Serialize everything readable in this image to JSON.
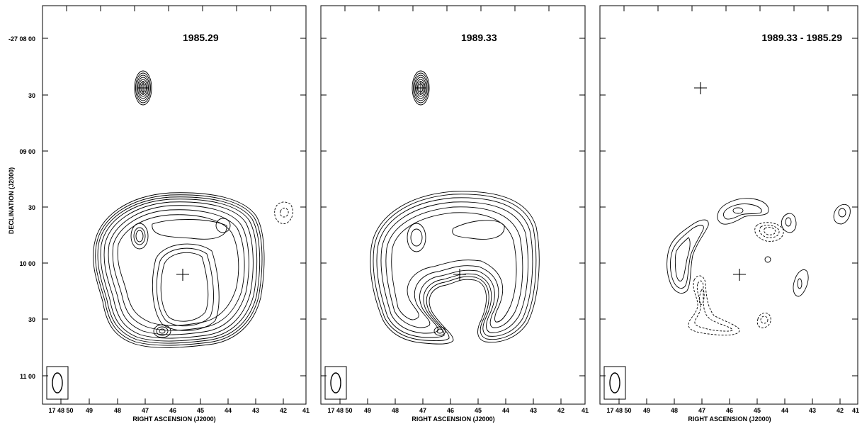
{
  "figure": {
    "y_axis_label": "DECLINATION (J2000)",
    "x_axis_label": "RIGHT ASCENSION (J2000)",
    "dec_ticks": [
      "-27 08 00",
      "30",
      "09 00",
      "30",
      "10 00",
      "30",
      "11 00"
    ],
    "ra_ticks": [
      "17 48 50",
      "49",
      "48",
      "47",
      "46",
      "45",
      "44",
      "43",
      "42",
      "41"
    ],
    "panels": [
      {
        "label": "1985.29"
      },
      {
        "label": "1989.33"
      },
      {
        "label": "1989.33 - 1985.29"
      }
    ]
  }
}
